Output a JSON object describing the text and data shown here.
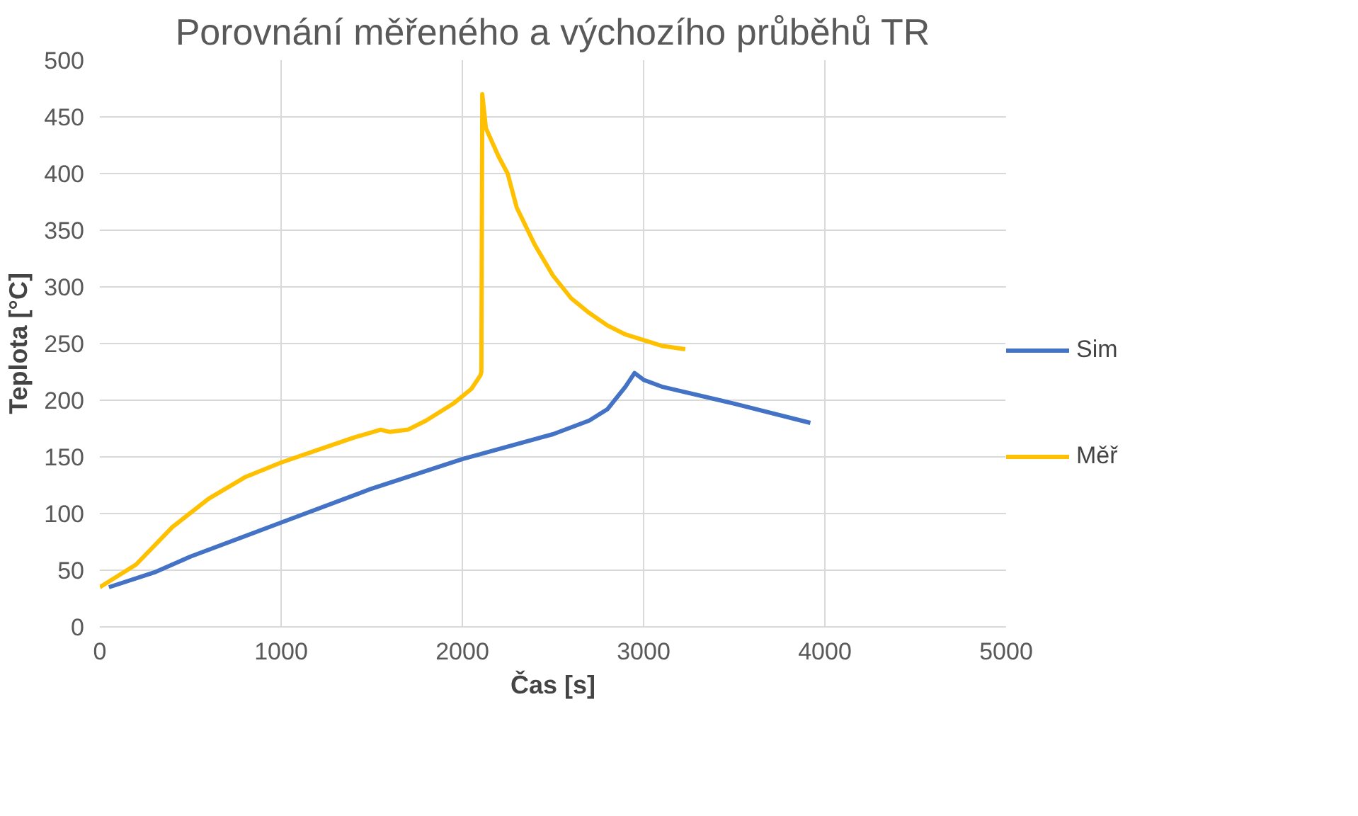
{
  "chart_data": {
    "type": "line",
    "title": "Porovnání měřeného a výchozího průběhů TR",
    "xlabel": "Čas [s]",
    "ylabel": "Teplota [°C]",
    "xlim": [
      0,
      5000
    ],
    "xticks": [
      0,
      1000,
      2000,
      3000,
      4000,
      5000
    ],
    "ylim": [
      0,
      500
    ],
    "yticks": [
      0,
      50,
      100,
      150,
      200,
      250,
      300,
      350,
      400,
      450,
      500
    ],
    "grid": true,
    "legend": "right",
    "series": [
      {
        "name": "Sim",
        "color": "#4472c4",
        "x": [
          50,
          300,
          500,
          1000,
          1500,
          2000,
          2500,
          2700,
          2800,
          2900,
          2950,
          3000,
          3100,
          3500,
          3920
        ],
        "values": [
          35,
          48,
          62,
          92,
          122,
          148,
          170,
          182,
          192,
          212,
          224,
          218,
          212,
          197,
          180
        ]
      },
      {
        "name": "Měř",
        "color": "#ffc000",
        "x": [
          0,
          200,
          400,
          600,
          800,
          1000,
          1200,
          1400,
          1550,
          1600,
          1700,
          1800,
          1950,
          2050,
          2100,
          2105,
          2110,
          2130,
          2200,
          2250,
          2300,
          2400,
          2500,
          2600,
          2700,
          2800,
          2900,
          3000,
          3100,
          3230
        ],
        "values": [
          35,
          55,
          88,
          113,
          132,
          145,
          156,
          167,
          174,
          172,
          174,
          182,
          197,
          210,
          222,
          225,
          470,
          440,
          415,
          400,
          370,
          337,
          310,
          290,
          277,
          266,
          258,
          253,
          248,
          245
        ]
      }
    ]
  }
}
